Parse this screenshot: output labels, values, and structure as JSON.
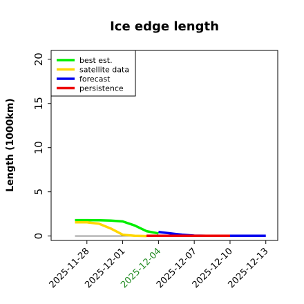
{
  "chart_data": {
    "type": "line",
    "title": "Ice edge length",
    "xlabel": "",
    "ylabel": "Length (1000km)",
    "ylim": [
      -0.5,
      21
    ],
    "yticks": [
      0,
      5,
      10,
      15,
      20
    ],
    "x_day_range": [
      "2025-11-25",
      "2025-12-14"
    ],
    "xticks": [
      {
        "label": "2025-11-28",
        "color": "#000000"
      },
      {
        "label": "2025-12-01",
        "color": "#000000"
      },
      {
        "label": "2025-12-04",
        "color": "#228B22"
      },
      {
        "label": "2025-12-07",
        "color": "#000000"
      },
      {
        "label": "2025-12-10",
        "color": "#000000"
      },
      {
        "label": "2025-12-13",
        "color": "#000000"
      }
    ],
    "legend_position": "top-left",
    "reference_line": {
      "color": "#555555",
      "y": 0,
      "x": [
        "2025-11-27",
        "2025-12-04"
      ]
    },
    "series": [
      {
        "name": "best est.",
        "color": "#00ee00",
        "x": [
          "2025-11-27",
          "2025-11-28",
          "2025-11-29",
          "2025-11-30",
          "2025-12-01",
          "2025-12-02",
          "2025-12-03",
          "2025-12-04"
        ],
        "y": [
          1.8,
          1.8,
          1.78,
          1.75,
          1.65,
          1.2,
          0.55,
          0.3
        ]
      },
      {
        "name": "satellite data",
        "color": "#ffd700",
        "x": [
          "2025-11-27",
          "2025-11-28",
          "2025-11-29",
          "2025-11-30",
          "2025-12-01",
          "2025-12-02",
          "2025-12-03"
        ],
        "y": [
          1.55,
          1.55,
          1.4,
          0.85,
          0.15,
          0.02,
          0.0
        ]
      },
      {
        "name": "forecast",
        "color": "#0000ee",
        "x": [
          "2025-12-04",
          "2025-12-05",
          "2025-12-06",
          "2025-12-07",
          "2025-12-08",
          "2025-12-09",
          "2025-12-10",
          "2025-12-11",
          "2025-12-12",
          "2025-12-13"
        ],
        "y": [
          0.45,
          0.3,
          0.15,
          0.05,
          0.02,
          0.02,
          0.02,
          0.02,
          0.02,
          0.02
        ]
      },
      {
        "name": "persistence",
        "color": "#ee0000",
        "x": [
          "2025-12-03",
          "2025-12-04",
          "2025-12-05",
          "2025-12-06",
          "2025-12-07",
          "2025-12-08",
          "2025-12-09",
          "2025-12-10"
        ],
        "y": [
          0.02,
          0.02,
          0.02,
          0.02,
          0.02,
          0.02,
          0.02,
          0.02
        ]
      }
    ]
  }
}
